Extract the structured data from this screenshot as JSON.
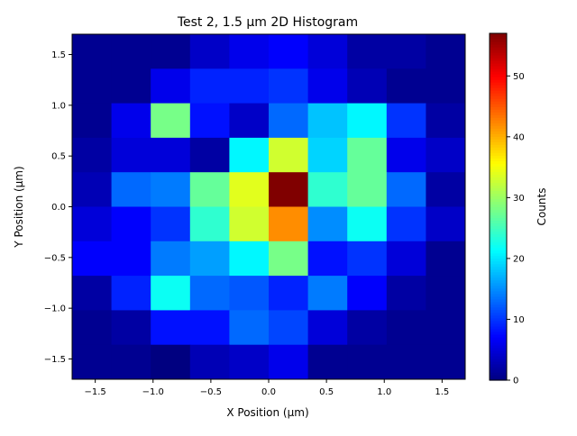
{
  "chart_data": {
    "type": "heatmap",
    "title": "Test 2, 1.5 µm 2D Histogram",
    "xlabel": "X Position (µm)",
    "ylabel": "Y Position (µm)",
    "colorbar_label": "Counts",
    "colormap": "jet",
    "xlim": [
      -1.7,
      1.7
    ],
    "ylim": [
      -1.7,
      1.7
    ],
    "clim": [
      0,
      57
    ],
    "x_ticks": [
      -1.5,
      -1.0,
      -0.5,
      0.0,
      0.5,
      1.0,
      1.5
    ],
    "x_tick_labels": [
      "−1.5",
      "−1.0",
      "−0.5",
      "0.0",
      "0.5",
      "1.0",
      "1.5"
    ],
    "y_ticks": [
      -1.5,
      -1.0,
      -0.5,
      0.0,
      0.5,
      1.0,
      1.5
    ],
    "y_tick_labels": [
      "−1.5",
      "−1.0",
      "−0.5",
      "0.0",
      "0.5",
      "1.0",
      "1.5"
    ],
    "colorbar_ticks": [
      0,
      10,
      20,
      30,
      40,
      50
    ],
    "colorbar_tick_labels": [
      "0",
      "10",
      "20",
      "30",
      "40",
      "50"
    ],
    "bins": 10,
    "counts_rows_top_to_bottom": [
      [
        1,
        1,
        1,
        4,
        6,
        7,
        5,
        2,
        2,
        1
      ],
      [
        1,
        1,
        6,
        9,
        9,
        10,
        6,
        3,
        1,
        1
      ],
      [
        1,
        6,
        28,
        8,
        4,
        13,
        18,
        21,
        10,
        2
      ],
      [
        2,
        5,
        5,
        2,
        21,
        33,
        19,
        27,
        6,
        4
      ],
      [
        3,
        13,
        14,
        27,
        34,
        57,
        24,
        27,
        13,
        2
      ],
      [
        5,
        7,
        10,
        24,
        33,
        42,
        15,
        22,
        10,
        4
      ],
      [
        7,
        7,
        14,
        16,
        21,
        28,
        8,
        10,
        5,
        1
      ],
      [
        2,
        9,
        22,
        13,
        12,
        9,
        14,
        7,
        2,
        1
      ],
      [
        1,
        2,
        8,
        8,
        13,
        11,
        5,
        2,
        1,
        1
      ],
      [
        1,
        1,
        0,
        3,
        4,
        6,
        1,
        1,
        1,
        1
      ]
    ]
  }
}
